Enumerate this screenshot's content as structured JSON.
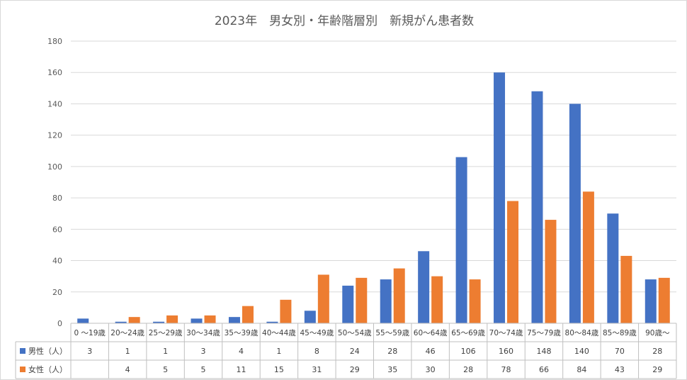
{
  "chart_data": {
    "type": "bar",
    "title": "2023年　男女別・年齢階層別　新規がん患者数",
    "categories": [
      "0 ～19歳",
      "20～24歳",
      "25～29歳",
      "30～34歳",
      "35～39歳",
      "40～44歳",
      "45～49歳",
      "50～54歳",
      "55～59歳",
      "60～64歳",
      "65～69歳",
      "70～74歳",
      "75～79歳",
      "80～84歳",
      "85～89歳",
      "90歳～"
    ],
    "series": [
      {
        "name": "男性（人）",
        "color": "#4472C4",
        "values": [
          3,
          1,
          1,
          3,
          4,
          1,
          8,
          24,
          28,
          46,
          106,
          160,
          148,
          140,
          70,
          28
        ],
        "labels": [
          "3",
          "1",
          "1",
          "3",
          "4",
          "1",
          "8",
          "24",
          "28",
          "46",
          "106",
          "160",
          "148",
          "140",
          "70",
          "28"
        ]
      },
      {
        "name": "女性（人）",
        "color": "#ED7D31",
        "values": [
          0,
          4,
          5,
          5,
          11,
          15,
          31,
          29,
          35,
          30,
          28,
          78,
          66,
          84,
          43,
          29
        ],
        "labels": [
          "",
          "4",
          "5",
          "5",
          "11",
          "15",
          "31",
          "29",
          "35",
          "30",
          "28",
          "78",
          "66",
          "84",
          "43",
          "29"
        ]
      }
    ],
    "yticks": [
      "0",
      "20",
      "40",
      "60",
      "80",
      "100",
      "120",
      "140",
      "160",
      "180"
    ],
    "ylim": [
      0,
      180
    ],
    "grid": true,
    "legend": "data-table"
  }
}
